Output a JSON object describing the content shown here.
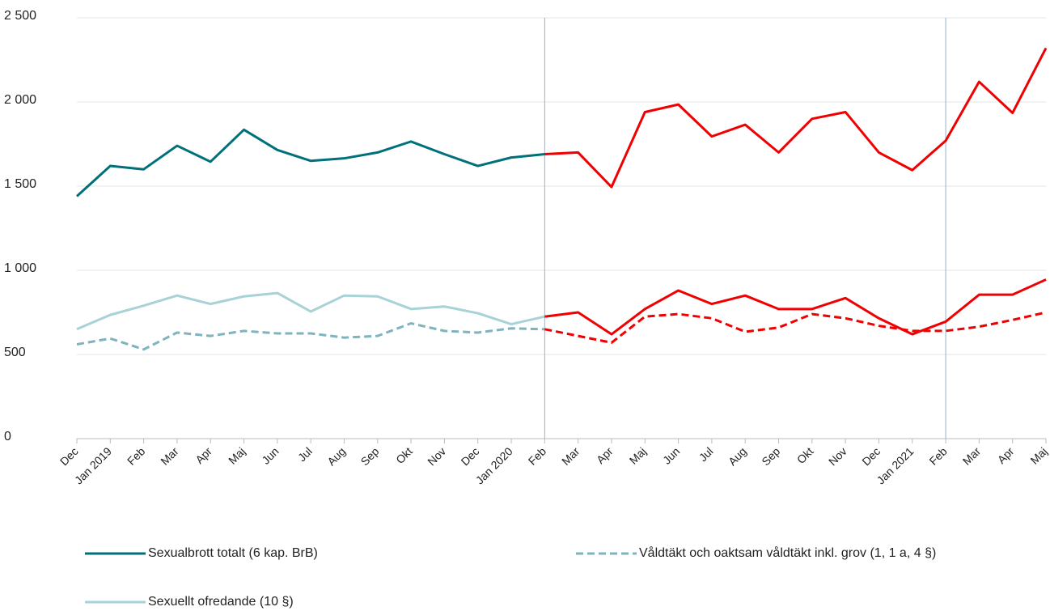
{
  "chart_data": {
    "type": "line",
    "categories": [
      "Dec",
      "Jan 2019",
      "Feb",
      "Mar",
      "Apr",
      "Maj",
      "Jun",
      "Jul",
      "Aug",
      "Sep",
      "Okt",
      "Nov",
      "Dec",
      "Jan 2020",
      "Feb",
      "Mar",
      "Apr",
      "Maj",
      "Jun",
      "Jul",
      "Aug",
      "Sep",
      "Okt",
      "Nov",
      "Dec",
      "Jan 2021",
      "Feb",
      "Mar",
      "Apr",
      "Maj"
    ],
    "series": [
      {
        "name": "Sexualbrott totalt (6 kap. BrB)",
        "color": "#00707a",
        "dashed": false,
        "values": [
          1440,
          1620,
          1600,
          1740,
          1645,
          1835,
          1715,
          1650,
          1665,
          1700,
          1765,
          1690,
          1620,
          1670,
          1690,
          1700,
          1495,
          1940,
          1985,
          1795,
          1865,
          1700,
          1900,
          1940,
          1700,
          1595,
          1770,
          2120,
          1935,
          2320
        ]
      },
      {
        "name": "Våldtäkt och oaktsam våldtäkt inkl. grov (1, 1 a, 4 §)",
        "color": "#7fb3bd",
        "dashed": true,
        "values": [
          560,
          595,
          530,
          630,
          610,
          640,
          625,
          625,
          600,
          610,
          685,
          640,
          630,
          655,
          650,
          610,
          570,
          725,
          740,
          715,
          635,
          660,
          740,
          715,
          670,
          640,
          640,
          665,
          705,
          750
        ]
      },
      {
        "name": "Sexuellt ofredande (10 §)",
        "color": "#a7d2d6",
        "dashed": false,
        "values": [
          650,
          735,
          790,
          850,
          800,
          845,
          865,
          755,
          850,
          845,
          770,
          785,
          745,
          680,
          725,
          750,
          620,
          770,
          880,
          800,
          850,
          770,
          770,
          835,
          715,
          620,
          695,
          855,
          855,
          945
        ]
      }
    ],
    "highlight_from": 14,
    "highlight_color": "#f00000",
    "vlines": [
      14,
      26
    ],
    "ylim": [
      0,
      2500
    ],
    "yticks": [
      0,
      500,
      {
        "value": 1000,
        "label": "1 000"
      },
      {
        "value": 1500,
        "label": "1 500"
      },
      {
        "value": 2000,
        "label": "2 000"
      },
      {
        "value": 2500,
        "label": "2 500"
      }
    ],
    "grid": true
  }
}
